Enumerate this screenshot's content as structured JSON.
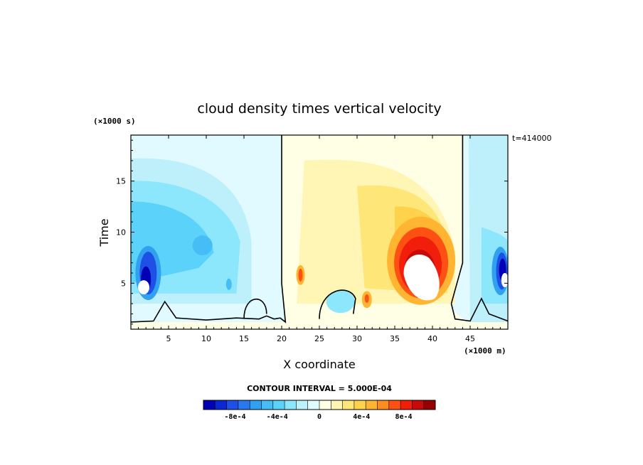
{
  "chart_data": {
    "type": "heatmap",
    "title": "cloud density times vertical velocity",
    "xlabel": "X coordinate",
    "ylabel": "Time",
    "x_units": "(×1000 m)",
    "y_units": "(×1000 s)",
    "time_stamp": "t=414000",
    "xlim": [
      0,
      50
    ],
    "ylim": [
      0.5,
      19.5
    ],
    "xticks": [
      "5",
      "10",
      "15",
      "20",
      "25",
      "30",
      "35",
      "40",
      "45"
    ],
    "xtick_values": [
      5,
      10,
      15,
      20,
      25,
      30,
      35,
      40,
      45
    ],
    "yticks": [
      "5",
      "10",
      "15"
    ],
    "ytick_values": [
      5,
      10,
      15
    ],
    "contour_interval_text": "CONTOUR INTERVAL = 5.000E-04",
    "colorbar": {
      "labels": [
        "-8e-4",
        "-4e-4",
        "0",
        "4e-4",
        "8e-4"
      ],
      "label_positions": [
        -0.0008,
        -0.0004,
        0,
        0.0004,
        0.0008
      ],
      "range": [
        -0.0011,
        0.0011
      ],
      "colors": [
        "#0000b4",
        "#0a28d2",
        "#1e50e6",
        "#2878f0",
        "#32a0f0",
        "#46bef5",
        "#5ad2fa",
        "#8ce6fc",
        "#bef0fc",
        "#e1faff",
        "#ffffe6",
        "#fff5b4",
        "#ffe678",
        "#ffd24b",
        "#ffb432",
        "#ff8c1e",
        "#ff5014",
        "#f01e0a",
        "#c80a0a",
        "#960000"
      ]
    },
    "features": [
      {
        "kind": "negative-core",
        "x": 2.5,
        "y": 6.0,
        "value": -0.0011
      },
      {
        "kind": "negative-core",
        "x": 49.2,
        "y": 6.2,
        "value": -0.0011
      },
      {
        "kind": "positive-core",
        "x": 38.5,
        "y": 7.0,
        "value": 0.0011
      },
      {
        "kind": "positive-blob",
        "x": 22.5,
        "y": 5.8,
        "value": 0.0008
      },
      {
        "kind": "positive-blob",
        "x": 31.3,
        "y": 3.4,
        "value": 0.0007
      },
      {
        "kind": "negative-broad",
        "x": 8.0,
        "y": 12.0,
        "value": -0.0004
      }
    ]
  }
}
